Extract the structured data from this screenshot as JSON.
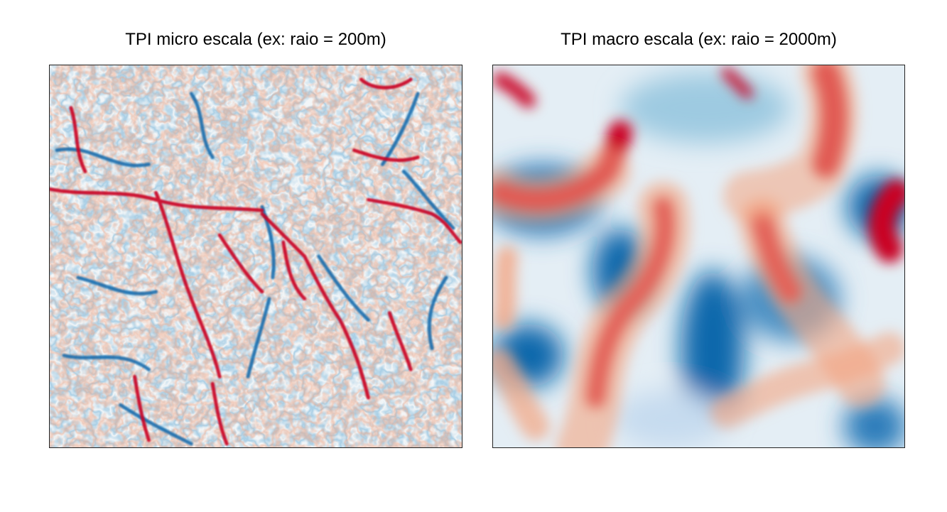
{
  "figure": {
    "panels": [
      {
        "title": "TPI micro escala (ex: raio = 200m)",
        "colormap": [
          "#0868ac",
          "#6baed6",
          "#d1e5f0",
          "#f7f7f7",
          "#fddbc7",
          "#f4a582",
          "#ca0020"
        ]
      },
      {
        "title": "TPI macro escala (ex: raio = 2000m)",
        "colormap": [
          "#0868ac",
          "#6baed6",
          "#d1e5f0",
          "#f7f7f7",
          "#fddbc7",
          "#f4a582",
          "#ca0020"
        ]
      }
    ]
  }
}
